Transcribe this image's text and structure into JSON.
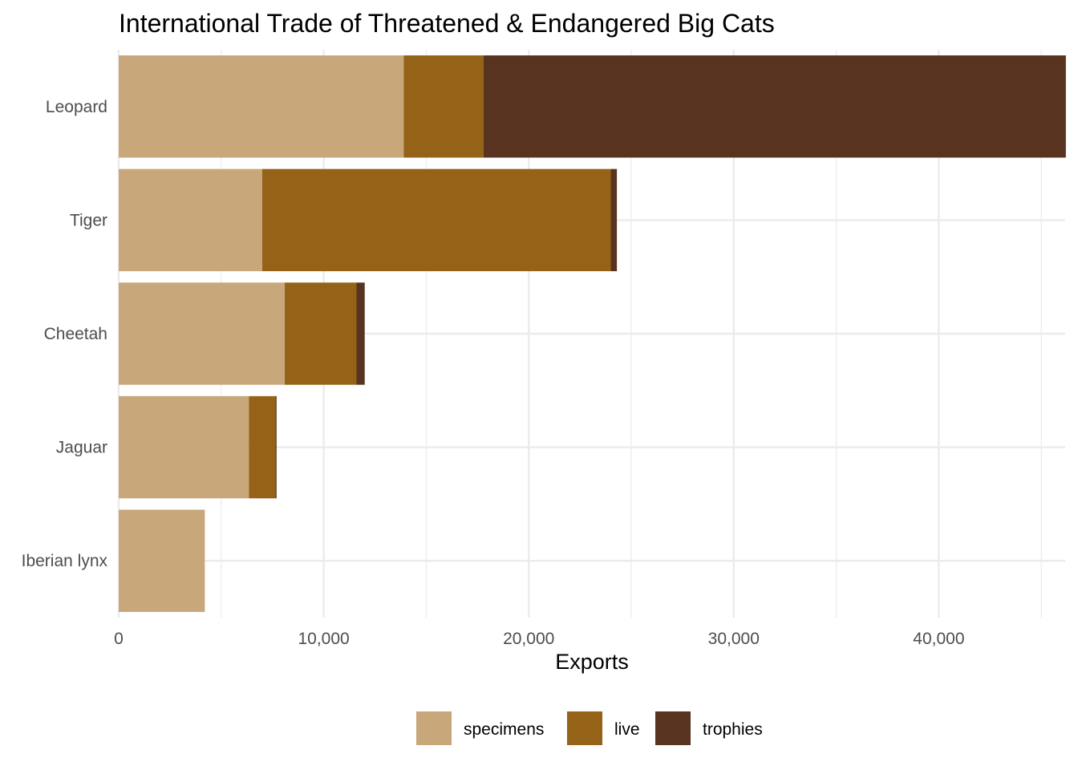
{
  "chart_data": {
    "type": "bar",
    "orientation": "horizontal",
    "stacked": true,
    "title": "International Trade of Threatened & Endangered Big Cats",
    "xlabel": "Exports",
    "ylabel": "",
    "xlim": [
      0,
      46200
    ],
    "x_ticks": [
      0,
      10000,
      20000,
      30000,
      40000
    ],
    "x_tick_labels": [
      "0",
      "10,000",
      "20,000",
      "30,000",
      "40,000"
    ],
    "categories": [
      "Leopard",
      "Tiger",
      "Cheetah",
      "Jaguar",
      "Iberian lynx"
    ],
    "series": [
      {
        "name": "specimens",
        "color": "#c8a77a",
        "values": [
          13900,
          7000,
          8100,
          6350,
          4200
        ]
      },
      {
        "name": "live",
        "color": "#956317",
        "values": [
          3900,
          17000,
          3500,
          1300,
          0
        ]
      },
      {
        "name": "trophies",
        "color": "#583420",
        "values": [
          28400,
          300,
          400,
          50,
          0
        ]
      }
    ],
    "grid": true,
    "legend_position": "bottom"
  }
}
